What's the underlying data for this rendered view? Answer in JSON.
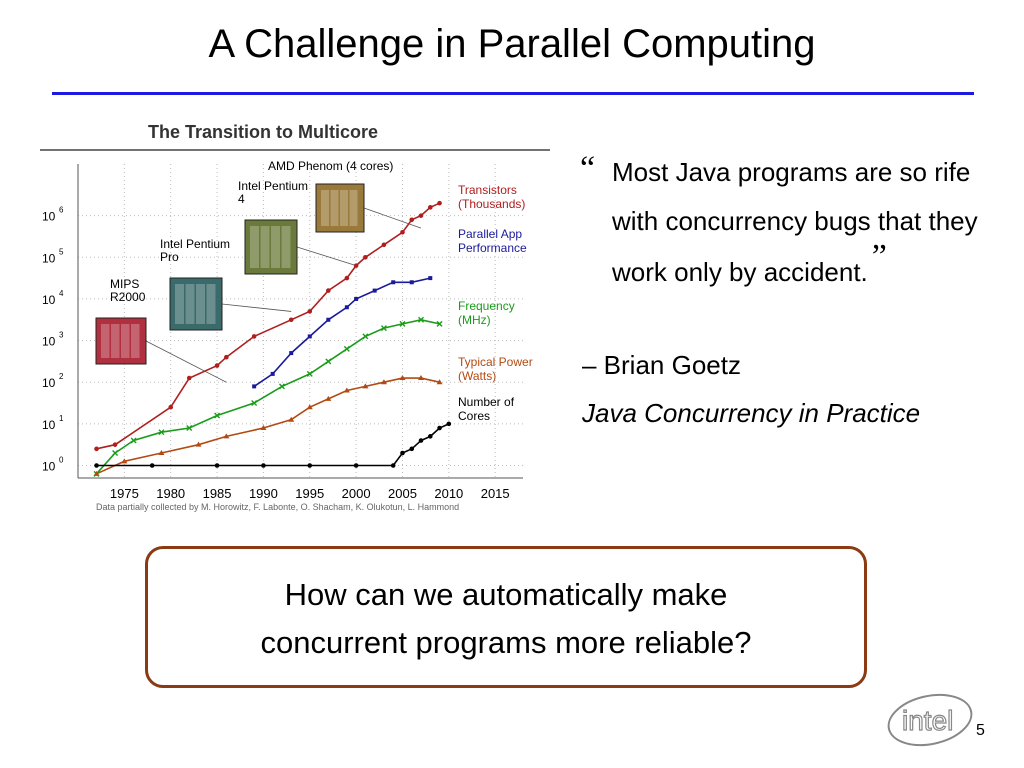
{
  "slide": {
    "title": "A Challenge in Parallel Computing",
    "page_number": "5",
    "logo_text": "intel"
  },
  "figure": {
    "title": "The Transition to Multicore",
    "credit": "Data partially collected by M. Horowitz, F. Labonte, O. Shacham, K. Olukotun, L. Hammond",
    "chip_labels": [
      "MIPS R2000",
      "Intel Pentium Pro",
      "Intel Pentium 4",
      "AMD Phenom (4 cores)"
    ],
    "series_labels": [
      {
        "name": "Transistors (Thousands)",
        "color": "#b01e1e"
      },
      {
        "name": "Parallel App Performance",
        "color": "#1a1a9c"
      },
      {
        "name": "Frequency (MHz)",
        "color": "#1a9c1a"
      },
      {
        "name": "Typical Power (Watts)",
        "color": "#b34a12"
      },
      {
        "name": "Number of Cores",
        "color": "#000000"
      }
    ]
  },
  "chart_data": {
    "type": "scatter",
    "title": "The Transition to Multicore",
    "xlim": [
      1970,
      2018
    ],
    "ylim_log10": [
      -0.3,
      7
    ],
    "x_ticks": [
      "1975",
      "1980",
      "1985",
      "1990",
      "1995",
      "2000",
      "2005",
      "2010",
      "2015"
    ],
    "y_ticks": [
      "10^0",
      "10^1",
      "10^2",
      "10^3",
      "10^4",
      "10^5",
      "10^6"
    ],
    "series": [
      {
        "name": "Transistors (Thousands)",
        "color": "#b01e1e",
        "points": [
          [
            1972,
            0.4
          ],
          [
            1974,
            0.5
          ],
          [
            1980,
            1.4
          ],
          [
            1982,
            2.1
          ],
          [
            1985,
            2.4
          ],
          [
            1986,
            2.6
          ],
          [
            1989,
            3.1
          ],
          [
            1993,
            3.5
          ],
          [
            1995,
            3.7
          ],
          [
            1997,
            4.2
          ],
          [
            1999,
            4.5
          ],
          [
            2000,
            4.8
          ],
          [
            2001,
            5.0
          ],
          [
            2003,
            5.3
          ],
          [
            2005,
            5.6
          ],
          [
            2006,
            5.9
          ],
          [
            2007,
            6.0
          ],
          [
            2008,
            6.2
          ],
          [
            2009,
            6.3
          ]
        ]
      },
      {
        "name": "Parallel App Performance",
        "color": "#1a1a9c",
        "points": [
          [
            1989,
            1.9
          ],
          [
            1991,
            2.2
          ],
          [
            1993,
            2.7
          ],
          [
            1995,
            3.1
          ],
          [
            1997,
            3.5
          ],
          [
            1999,
            3.8
          ],
          [
            2000,
            4.0
          ],
          [
            2002,
            4.2
          ],
          [
            2004,
            4.4
          ],
          [
            2006,
            4.4
          ],
          [
            2008,
            4.5
          ]
        ]
      },
      {
        "name": "Frequency (MHz)",
        "color": "#1a9c1a",
        "points": [
          [
            1972,
            -0.2
          ],
          [
            1974,
            0.3
          ],
          [
            1976,
            0.6
          ],
          [
            1979,
            0.8
          ],
          [
            1982,
            0.9
          ],
          [
            1985,
            1.2
          ],
          [
            1989,
            1.5
          ],
          [
            1992,
            1.9
          ],
          [
            1995,
            2.2
          ],
          [
            1997,
            2.5
          ],
          [
            1999,
            2.8
          ],
          [
            2001,
            3.1
          ],
          [
            2003,
            3.3
          ],
          [
            2005,
            3.4
          ],
          [
            2007,
            3.5
          ],
          [
            2009,
            3.4
          ]
        ]
      },
      {
        "name": "Typical Power (Watts)",
        "color": "#b34a12",
        "points": [
          [
            1972,
            -0.2
          ],
          [
            1975,
            0.1
          ],
          [
            1979,
            0.3
          ],
          [
            1983,
            0.5
          ],
          [
            1986,
            0.7
          ],
          [
            1990,
            0.9
          ],
          [
            1993,
            1.1
          ],
          [
            1995,
            1.4
          ],
          [
            1997,
            1.6
          ],
          [
            1999,
            1.8
          ],
          [
            2001,
            1.9
          ],
          [
            2003,
            2.0
          ],
          [
            2005,
            2.1
          ],
          [
            2007,
            2.1
          ],
          [
            2009,
            2.0
          ]
        ]
      },
      {
        "name": "Number of Cores",
        "color": "#000000",
        "points": [
          [
            1972,
            0
          ],
          [
            1978,
            0
          ],
          [
            1985,
            0
          ],
          [
            1990,
            0
          ],
          [
            1995,
            0
          ],
          [
            2000,
            0
          ],
          [
            2004,
            0
          ],
          [
            2005,
            0.3
          ],
          [
            2006,
            0.4
          ],
          [
            2007,
            0.6
          ],
          [
            2008,
            0.7
          ],
          [
            2009,
            0.9
          ],
          [
            2010,
            1.0
          ]
        ]
      }
    ]
  },
  "quote": {
    "open_mark": "“",
    "text": "Most Java programs are so rife with concurrency bugs that they work only by accident.",
    "close_mark": "”",
    "author": "– Brian Goetz",
    "source": "Java Concurrency in Practice"
  },
  "callout": {
    "line1": "How can we automatically make",
    "line2": "concurrent programs more reliable?"
  }
}
